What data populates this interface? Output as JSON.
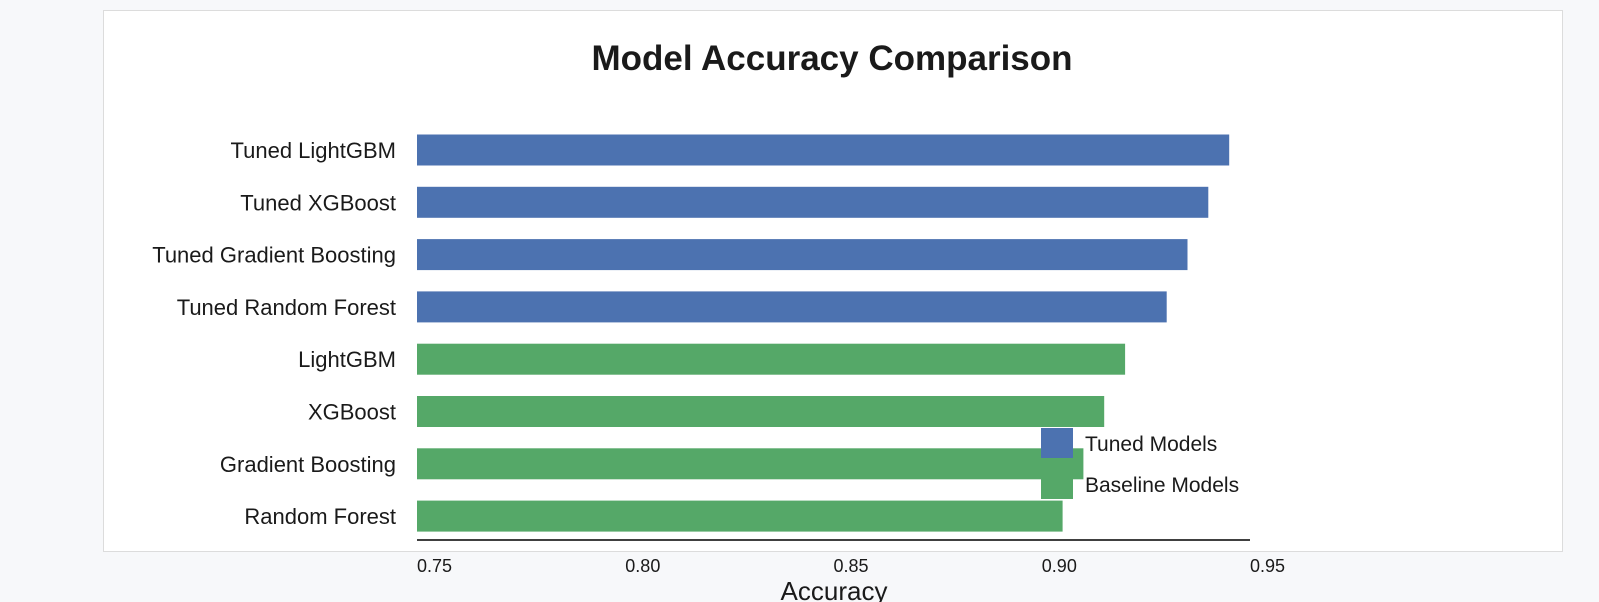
{
  "chart_data": {
    "type": "bar",
    "orientation": "horizontal",
    "title": "Model Accuracy Comparison",
    "xlabel": "Accuracy",
    "ylabel": "",
    "xlim": [
      0.75,
      0.95
    ],
    "xticks": [
      "0.75",
      "0.80",
      "0.85",
      "0.90",
      "0.95"
    ],
    "categories": [
      "Tuned LightGBM",
      "Tuned XGBoost",
      "Tuned Gradient Boosting",
      "Tuned Random Forest",
      "LightGBM",
      "XGBoost",
      "Gradient Boosting",
      "Random Forest"
    ],
    "values": [
      0.945,
      0.94,
      0.935,
      0.93,
      0.92,
      0.915,
      0.91,
      0.905
    ],
    "groups": [
      "tuned",
      "tuned",
      "tuned",
      "tuned",
      "baseline",
      "baseline",
      "baseline",
      "baseline"
    ],
    "legend": {
      "position": "lower-right",
      "entries": [
        {
          "key": "tuned",
          "label": "Tuned Models",
          "color": "#4c72b0"
        },
        {
          "key": "baseline",
          "label": "Baseline Models",
          "color": "#55a868"
        }
      ]
    },
    "grid": false
  }
}
